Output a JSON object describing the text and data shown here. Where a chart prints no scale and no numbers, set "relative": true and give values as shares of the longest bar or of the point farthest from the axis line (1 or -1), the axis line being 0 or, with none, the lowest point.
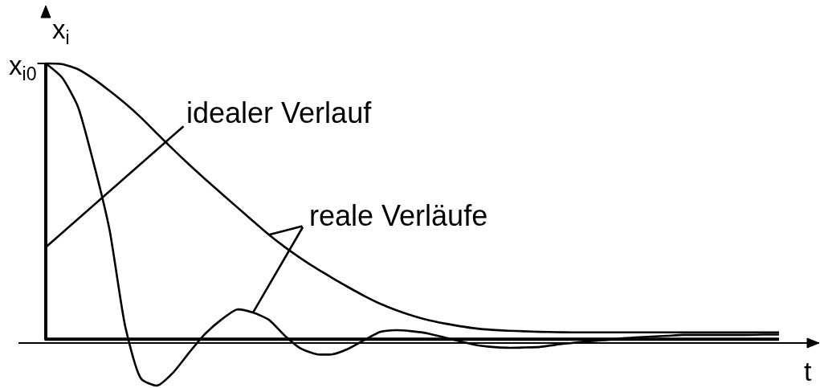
{
  "chart_data": {
    "type": "line",
    "relative": true,
    "xlabel": "t",
    "ylabel": "x$_{i}$",
    "categories": [
      null,
      null,
      null,
      null,
      null,
      null,
      null,
      null,
      null,
      null,
      null,
      null,
      null,
      null,
      null,
      null,
      null,
      null,
      null,
      null,
      null,
      null,
      null,
      null,
      null,
      null,
      null,
      null,
      null,
      null,
      null,
      null,
      null,
      null,
      null,
      null,
      null,
      null,
      null,
      null,
      null,
      null,
      null,
      null,
      null,
      null,
      null
    ],
    "series": [
      {
        "type": "step",
        "color": "#000000",
        "values": [
          1.0,
          0.014,
          0.014,
          0.014,
          0.014,
          0.014,
          0.014,
          0.014,
          0.014,
          0.014,
          0.014,
          0.014,
          0.014,
          0.014,
          0.014,
          0.014,
          0.014,
          0.014,
          0.014,
          0.014,
          0.014,
          0.014,
          0.014,
          0.014,
          0.014,
          0.014,
          0.014,
          0.014,
          0.014,
          0.014,
          0.014,
          0.014,
          0.014,
          0.014,
          0.014,
          0.014,
          0.014,
          0.014,
          0.014,
          0.014,
          0.014,
          0.014,
          0.014,
          0.014,
          0.014,
          0.014,
          0.014
        ]
      },
      {
        "color": "#000000",
        "values": [
          1.0,
          0.998,
          0.98,
          0.945,
          0.902,
          0.856,
          0.805,
          0.748,
          0.692,
          0.638,
          0.586,
          0.536,
          0.486,
          0.436,
          0.387,
          0.343,
          0.303,
          0.266,
          0.232,
          0.199,
          0.168,
          0.14,
          0.117,
          0.098,
          0.082,
          0.07,
          0.06,
          0.052,
          0.047,
          0.044,
          0.042,
          0.04,
          0.039,
          0.038,
          0.038,
          0.038,
          0.038,
          0.038,
          0.038,
          0.038,
          0.038,
          0.038,
          0.038,
          0.038,
          0.038,
          0.038,
          0.038
        ]
      },
      {
        "color": "#000000",
        "values": [
          1.0,
          0.951,
          0.848,
          0.644,
          0.405,
          0.055,
          -0.129,
          -0.152,
          -0.105,
          -0.034,
          0.033,
          0.083,
          0.12,
          0.109,
          0.083,
          0.026,
          -0.02,
          -0.04,
          -0.04,
          -0.02,
          0.011,
          0.04,
          0.046,
          0.042,
          0.034,
          0.02,
          0.006,
          -0.007,
          -0.014,
          -0.017,
          -0.016,
          -0.014,
          -0.006,
          0.0,
          0.006,
          0.01,
          0.016,
          0.02,
          0.023,
          0.026,
          0.029,
          0.029,
          0.029,
          0.029,
          0.029,
          0.03,
          0.03
        ]
      }
    ],
    "annotations": [
      "x$_{i0}$",
      "idealer Verlauf",
      "reale Verläufe"
    ]
  }
}
